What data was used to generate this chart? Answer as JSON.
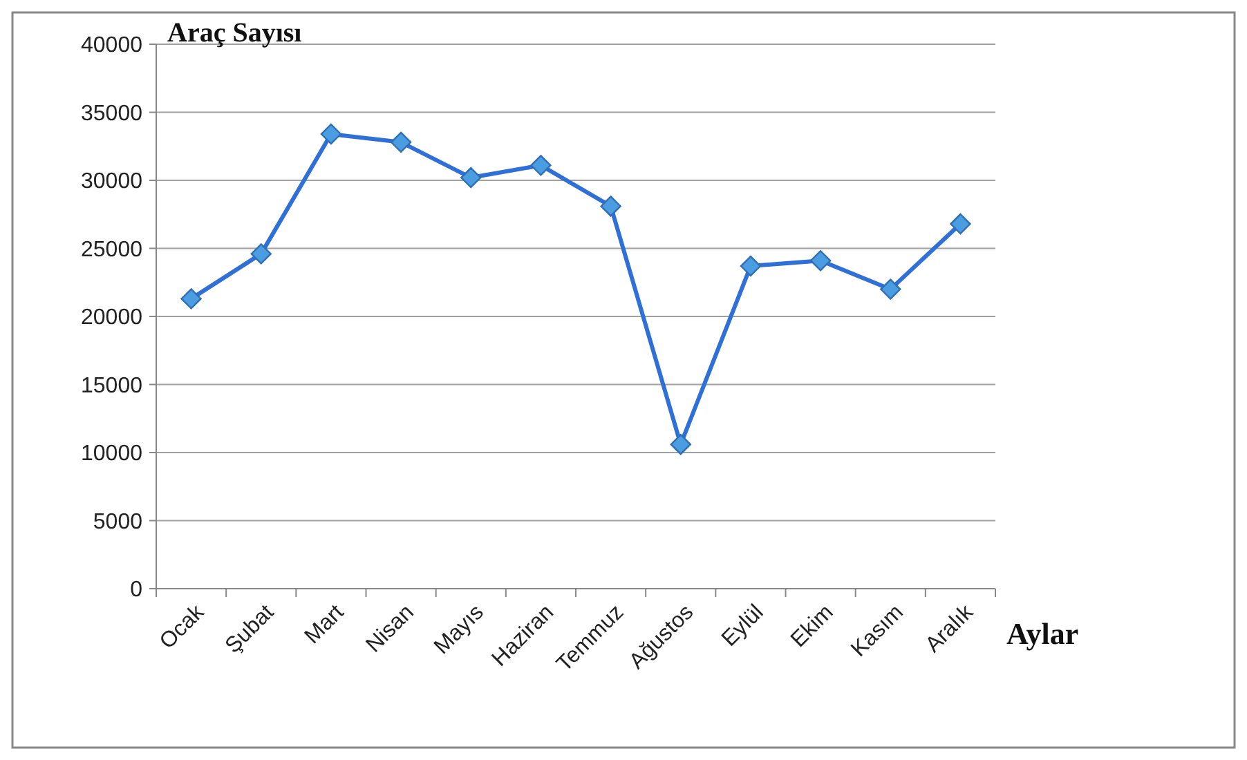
{
  "chart_data": {
    "type": "line",
    "ylabel": "Araç Sayısı",
    "xlabel": "Aylar",
    "categories": [
      "Ocak",
      "Şubat",
      "Mart",
      "Nisan",
      "Mayıs",
      "Haziran",
      "Temmuz",
      "Ağustos",
      "Eylül",
      "Ekim",
      "Kasım",
      "Aralık"
    ],
    "series": [
      {
        "color": "#2e6fd8",
        "values": [
          21300,
          24600,
          33400,
          32800,
          30200,
          31100,
          28100,
          10600,
          23700,
          24100,
          22000,
          26800
        ]
      }
    ],
    "ylim": [
      0,
      40000
    ],
    "yticks": [
      0,
      5000,
      10000,
      15000,
      20000,
      25000,
      30000,
      35000,
      40000
    ],
    "grid": "y",
    "marker": "diamond",
    "line_style": "solid"
  }
}
